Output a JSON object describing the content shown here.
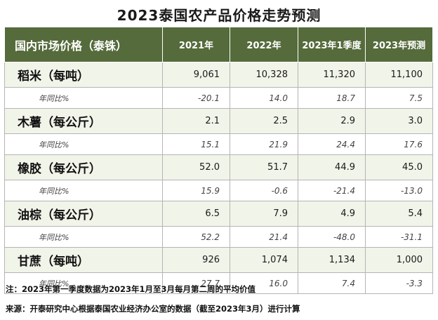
{
  "title": "2023泰国农产品价格走势预测",
  "table": {
    "header": [
      "国内市场价格（泰铢）",
      "2021年",
      "2022年",
      "2023年1季度",
      "2023年预测"
    ],
    "yoy_label": "年同比%",
    "rows": [
      {
        "name": "稻米（每吨）",
        "values": [
          "9,061",
          "10,328",
          "11,320",
          "11,100"
        ],
        "yoy": [
          "-20.1",
          "14.0",
          "18.7",
          "7.5"
        ]
      },
      {
        "name": "木薯（每公斤）",
        "values": [
          "2.1",
          "2.5",
          "2.9",
          "3.0"
        ],
        "yoy": [
          "15.1",
          "21.9",
          "24.4",
          "17.6"
        ]
      },
      {
        "name": "橡胶（每公斤）",
        "values": [
          "52.0",
          "51.7",
          "44.9",
          "45.0"
        ],
        "yoy": [
          "15.9",
          "-0.6",
          "-21.4",
          "-13.0"
        ]
      },
      {
        "name": "油棕（每公斤）",
        "values": [
          "6.5",
          "7.9",
          "4.9",
          "5.4"
        ],
        "yoy": [
          "52.2",
          "21.4",
          "-48.0",
          "-31.1"
        ]
      },
      {
        "name": "甘蔗（每吨）",
        "values": [
          "926",
          "1,074",
          "1,134",
          "1,000"
        ],
        "yoy": [
          "27.7",
          "16.0",
          "7.4",
          "-3.3"
        ]
      }
    ]
  },
  "note": "注：2023年第一季度数据为2023年1月至3月每月第二周的平均价值",
  "source": "来源：开泰研究中心根据泰国农业经济办公室的数据（截至2023年3月）进行计算",
  "colors": {
    "header_bg": "#556b3b",
    "row_bg": "#f1f4e9",
    "forecast_negative": "#c0392b"
  }
}
